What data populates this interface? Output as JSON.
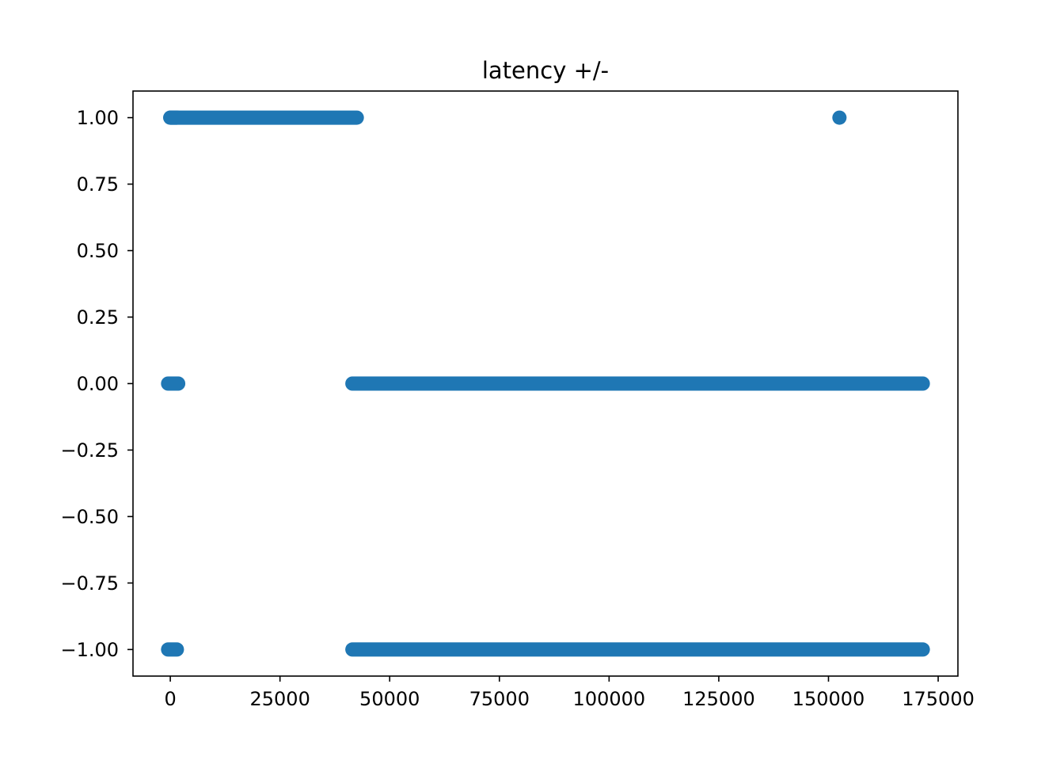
{
  "chart_data": {
    "type": "scatter",
    "title": "latency +/-",
    "xlabel": "",
    "ylabel": "",
    "xlim": [
      -8500,
      179500
    ],
    "ylim": [
      -1.1,
      1.1
    ],
    "grid": false,
    "marker_color": "#1f77b4",
    "x_ticks": [
      0,
      25000,
      50000,
      75000,
      100000,
      125000,
      150000,
      175000
    ],
    "x_tick_labels": [
      "0",
      "25000",
      "50000",
      "75000",
      "100000",
      "125000",
      "150000",
      "175000"
    ],
    "y_ticks": [
      1.0,
      0.75,
      0.5,
      0.25,
      0.0,
      -0.25,
      -0.5,
      -0.75,
      -1.0
    ],
    "y_tick_labels": [
      "1.00",
      "0.75",
      "0.50",
      "0.25",
      "0.00",
      "−0.25",
      "−0.50",
      "−0.75",
      "−1.00"
    ],
    "series": [
      {
        "color": "#1f77b4",
        "segments": [
          {
            "y": 1.0,
            "x_start": 0,
            "x_end": 1500
          },
          {
            "y": 1.0,
            "x_start": 0,
            "x_end": 42500
          },
          {
            "y": 0.0,
            "x_start": -500,
            "x_end": 1800
          },
          {
            "y": 0.0,
            "x_start": 41500,
            "x_end": 171500
          },
          {
            "y": -1.0,
            "x_start": -500,
            "x_end": 1500
          },
          {
            "y": -1.0,
            "x_start": 41500,
            "x_end": 171500
          }
        ],
        "points": [
          {
            "x": 152500,
            "y": 1.0
          }
        ]
      }
    ]
  }
}
